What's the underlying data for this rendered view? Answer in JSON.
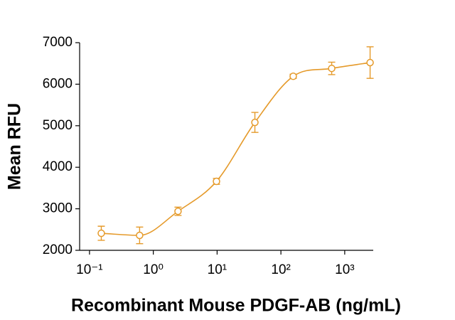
{
  "chart_data": {
    "type": "scatter",
    "color": "#e59a2a",
    "log_x": true,
    "xlabel": "Recombinant Mouse PDGF-AB (ng/mL)",
    "ylabel": "Mean RFU",
    "x": [
      0.153,
      0.61,
      2.44,
      9.77,
      39.1,
      156,
      625,
      2500
    ],
    "values": [
      2410,
      2360,
      2940,
      3660,
      5080,
      6190,
      6380,
      6520
    ],
    "errors": [
      170,
      200,
      100,
      70,
      240,
      50,
      150,
      380
    ],
    "xlim": [
      0.07,
      2800
    ],
    "xticks": [
      {
        "value": 0.1,
        "label": "10⁻¹"
      },
      {
        "value": 1,
        "label": "10⁰"
      },
      {
        "value": 10,
        "label": "10¹"
      },
      {
        "value": 100,
        "label": "10²"
      },
      {
        "value": 1000,
        "label": "10³"
      }
    ],
    "ylim": [
      2000,
      7000
    ],
    "yticks": [
      2000,
      3000,
      4000,
      5000,
      6000,
      7000
    ]
  }
}
